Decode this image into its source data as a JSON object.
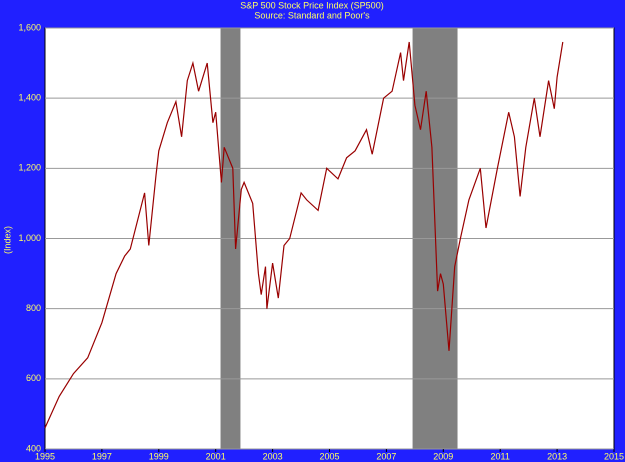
{
  "chart_data": {
    "type": "line",
    "title": "S&P 500 Stock Price Index (SP500)",
    "subtitle": "Source: Standard and Poor's",
    "ylabel": "(Index)",
    "xlim": [
      1995,
      2015
    ],
    "xticks": [
      1995,
      1997,
      1999,
      2001,
      2003,
      2005,
      2007,
      2009,
      2011,
      2013,
      2015
    ],
    "ylim": [
      400,
      1600
    ],
    "yticks": [
      400,
      600,
      800,
      {
        "value": 1000,
        "label": "1,000"
      },
      {
        "value": 1200,
        "label": "1,200"
      },
      {
        "value": 1400,
        "label": "1,400"
      },
      {
        "value": 1600,
        "label": "1,600"
      }
    ],
    "grid": true,
    "recession_color": "#808080",
    "recessions": [
      [
        2001.17,
        2001.87
      ],
      [
        2007.92,
        2009.5
      ]
    ],
    "series": [
      {
        "name": "SP500",
        "color": "#990000",
        "x": [
          1995.0,
          1995.5,
          1996.0,
          1996.5,
          1997.0,
          1997.5,
          1997.8,
          1998.0,
          1998.5,
          1998.65,
          1998.9,
          1999.0,
          1999.3,
          1999.6,
          1999.8,
          2000.0,
          2000.2,
          2000.4,
          2000.7,
          2000.9,
          2001.0,
          2001.2,
          2001.3,
          2001.6,
          2001.7,
          2001.9,
          2002.0,
          2002.3,
          2002.5,
          2002.6,
          2002.75,
          2002.8,
          2003.0,
          2003.2,
          2003.4,
          2003.6,
          2004.0,
          2004.2,
          2004.6,
          2004.9,
          2005.3,
          2005.6,
          2005.9,
          2006.3,
          2006.5,
          2006.9,
          2007.2,
          2007.5,
          2007.6,
          2007.8,
          2008.0,
          2008.2,
          2008.4,
          2008.6,
          2008.8,
          2008.9,
          2009.0,
          2009.2,
          2009.4,
          2009.6,
          2009.9,
          2010.3,
          2010.5,
          2010.9,
          2011.3,
          2011.5,
          2011.7,
          2011.9,
          2012.2,
          2012.4,
          2012.7,
          2012.9,
          2013.0,
          2013.2
        ],
        "values": [
          460,
          550,
          615,
          660,
          760,
          900,
          950,
          970,
          1130,
          980,
          1180,
          1250,
          1330,
          1390,
          1290,
          1450,
          1500,
          1420,
          1500,
          1330,
          1360,
          1160,
          1260,
          1200,
          970,
          1140,
          1160,
          1100,
          900,
          840,
          920,
          800,
          930,
          830,
          980,
          1000,
          1130,
          1110,
          1080,
          1200,
          1170,
          1230,
          1250,
          1310,
          1240,
          1400,
          1420,
          1530,
          1450,
          1560,
          1380,
          1310,
          1420,
          1260,
          850,
          900,
          870,
          680,
          920,
          1000,
          1110,
          1200,
          1030,
          1200,
          1360,
          1290,
          1120,
          1260,
          1400,
          1290,
          1450,
          1370,
          1460,
          1560
        ]
      }
    ]
  }
}
